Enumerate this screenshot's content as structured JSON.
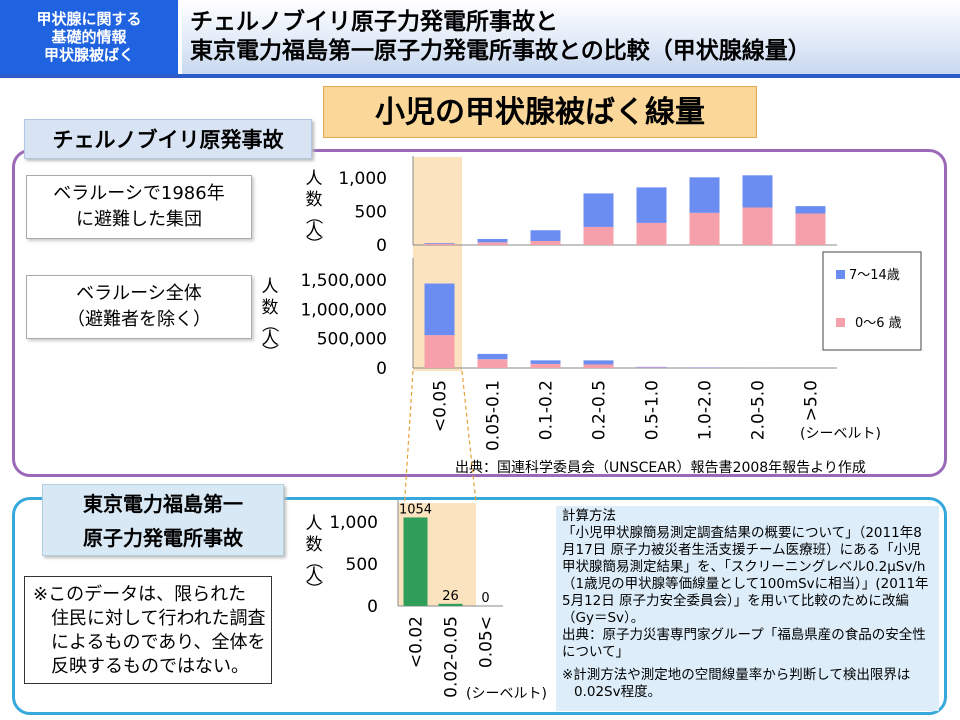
{
  "header": {
    "badge_lines": [
      "甲状腺に関する",
      "基礎的情報",
      "甲状腺被ばく"
    ],
    "title_lines": [
      "チェルノブイリ原子力発電所事故と",
      "東京電力福島第一原子力発電所事故との比較（甲状腺線量）"
    ]
  },
  "main_title": "小児の甲状腺被ばく線量",
  "chernobyl": {
    "label": "チェルノブイリ原発事故",
    "group1": [
      "ベラルーシで1986年",
      "に避難した集団"
    ],
    "group2": [
      "ベラルーシ全体",
      "（避難者を除く）"
    ],
    "ylabel_chars": [
      "人",
      "数",
      "（",
      "人",
      "）"
    ],
    "unit": "(シーベルト)",
    "legend": [
      "7～14歳",
      "0～6 歳"
    ],
    "source": "出典：国連科学委員会（UNSCEAR）報告書2008年報告より作成"
  },
  "fukushima": {
    "label_lines": [
      "東京電力福島第一",
      "原子力発電所事故"
    ],
    "note_lines": [
      "※このデータは、限られた",
      "　住民に対して行われた調査",
      "　によるものであり、全体を",
      "　反映するものではない。"
    ],
    "unit": "(シーベルト)",
    "calc_lines": [
      "計算方法",
      "「小児甲状腺簡易測定調査結果の概要について」（2011年8月17日 原子力被災者生活支援チーム医療班）にある「小児甲状腺簡易測定結果」を、「スクリーニングレベル0.2μSv/h（1歳児の甲状腺等価線量として100mSvに相当）」(2011年5月12日 原子力安全委員会）」を用いて比較のために改編（Gy＝Sv）。",
      "出典：原子力災害専門家グループ「福島県産の食品の安全性について」",
      "※計測方法や測定地の空間線量率から判断して検出限界は0.02Sv程度。"
    ]
  },
  "colors": {
    "older": "#6b8cf0",
    "younger": "#f6a0ab",
    "fukushima": "#2e9e5a",
    "highlight": "#fbe3c0"
  },
  "chart_data": [
    {
      "type": "bar",
      "stacked": true,
      "title": "",
      "categories": [
        "<0.05",
        "0.05-0.1",
        "0.1-0.2",
        "0.2-0.5",
        "0.5-1.0",
        "1.0-2.0",
        "2.0-5.0",
        ">5.0"
      ],
      "series": [
        {
          "name": "0～6 歳",
          "values": [
            20,
            40,
            60,
            270,
            330,
            480,
            560,
            470
          ]
        },
        {
          "name": "7～14歳",
          "values": [
            10,
            50,
            160,
            500,
            530,
            530,
            480,
            110
          ]
        }
      ],
      "ylim": [
        0,
        1000
      ],
      "yticks": [
        "1,000",
        "500",
        "0"
      ]
    },
    {
      "type": "bar",
      "stacked": true,
      "title": "",
      "categories": [
        "<0.05",
        "0.05-0.1",
        "0.1-0.2",
        "0.2-0.5",
        "0.5-1.0",
        "1.0-2.0",
        "2.0-5.0",
        ">5.0"
      ],
      "series": [
        {
          "name": "0～6 歳",
          "values": [
            560000,
            150000,
            70000,
            60000,
            10000,
            4000,
            1000,
            0
          ]
        },
        {
          "name": "7～14歳",
          "values": [
            880000,
            90000,
            60000,
            70000,
            10000,
            6000,
            1000,
            0
          ]
        }
      ],
      "ylim": [
        0,
        1500000
      ],
      "yticks": [
        "1,500,000",
        "1,000,000",
        "500,000",
        "0"
      ]
    },
    {
      "type": "bar",
      "title": "",
      "categories": [
        "<0.02",
        "0.02-0.05",
        "0.05<"
      ],
      "values": [
        1054,
        26,
        0
      ],
      "data_labels": [
        "1054",
        "26",
        "0"
      ],
      "ylim": [
        0,
        1000
      ],
      "yticks": [
        "1,000",
        "500",
        "0"
      ]
    }
  ]
}
